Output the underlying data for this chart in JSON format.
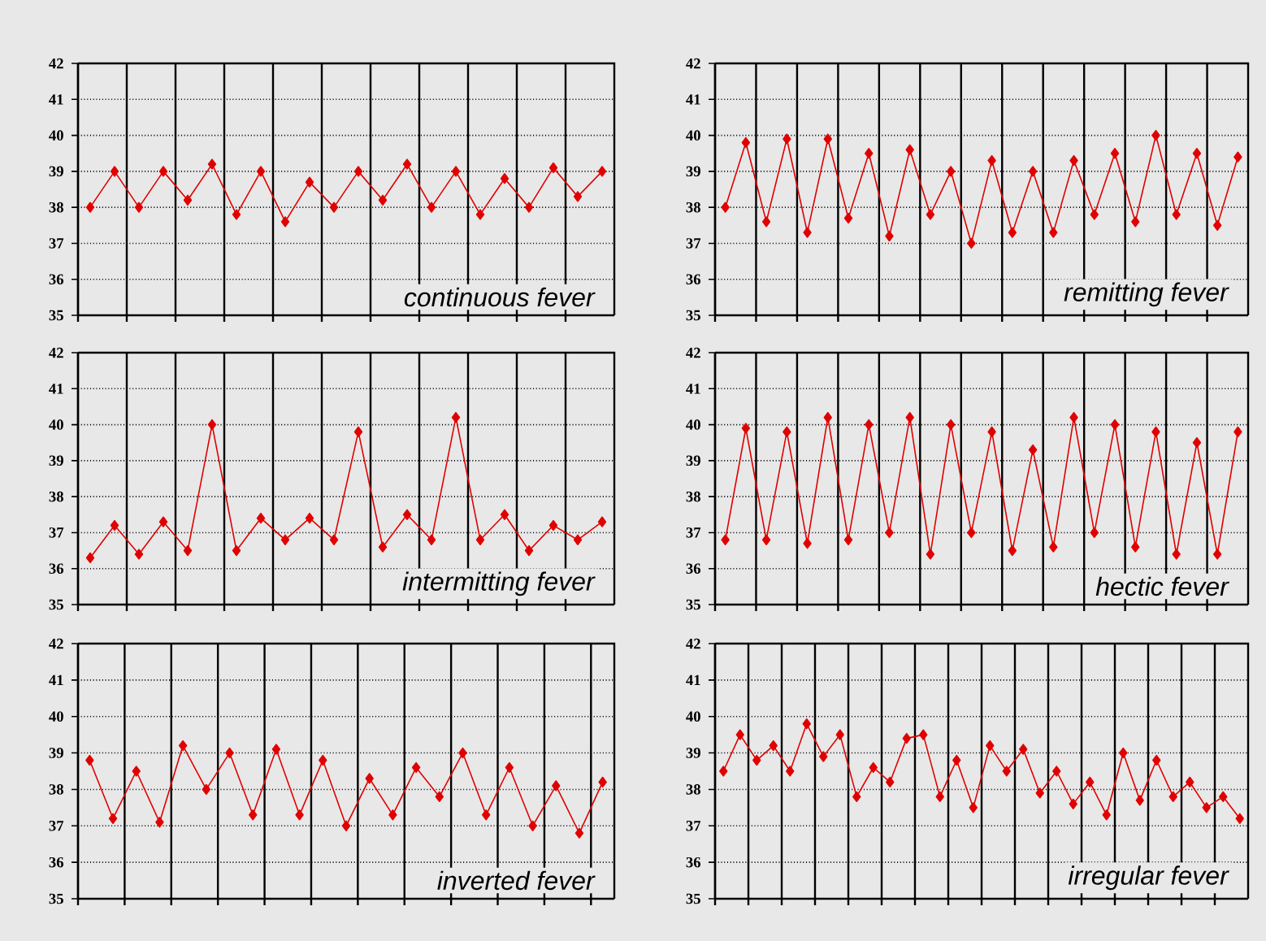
{
  "chart_data": [
    {
      "type": "line",
      "categories": [
        null,
        null,
        null,
        null,
        null,
        null,
        null,
        null,
        null,
        null,
        null,
        null,
        null,
        null,
        null,
        null,
        null,
        null,
        null,
        null,
        null,
        null
      ],
      "values": [
        38,
        39,
        38,
        39,
        38.2,
        39.2,
        37.8,
        39,
        37.6,
        38.7,
        38,
        39,
        38.2,
        39.2,
        38,
        39,
        37.8,
        38.8,
        38,
        39.1,
        38.3,
        39
      ],
      "color": "#e00000",
      "marker": "diamond",
      "ylim": [
        35,
        42
      ],
      "yticks": [
        35,
        36,
        37,
        38,
        39,
        40,
        41,
        42
      ],
      "grid": true,
      "tick_labels": "y",
      "annotations": [
        "continuous fever"
      ]
    },
    {
      "type": "line",
      "categories": [
        null,
        null,
        null,
        null,
        null,
        null,
        null,
        null,
        null,
        null,
        null,
        null,
        null,
        null,
        null,
        null,
        null,
        null,
        null,
        null,
        null,
        null,
        null,
        null,
        null,
        null
      ],
      "values": [
        38,
        39.8,
        37.6,
        39.9,
        37.3,
        39.9,
        37.7,
        39.5,
        37.2,
        39.6,
        37.8,
        39,
        37,
        39.3,
        37.3,
        39,
        37.3,
        39.3,
        37.8,
        39.5,
        37.6,
        40,
        37.8,
        39.5,
        37.5,
        39.4
      ],
      "color": "#e00000",
      "marker": "diamond",
      "ylim": [
        35,
        42
      ],
      "yticks": [
        35,
        36,
        37,
        38,
        39,
        40,
        41,
        42
      ],
      "grid": true,
      "tick_labels": "y",
      "annotations": [
        "remitting fever"
      ]
    },
    {
      "type": "line",
      "categories": [
        null,
        null,
        null,
        null,
        null,
        null,
        null,
        null,
        null,
        null,
        null,
        null,
        null,
        null,
        null,
        null,
        null,
        null,
        null,
        null,
        null,
        null
      ],
      "values": [
        36.3,
        37.2,
        36.4,
        37.3,
        36.5,
        40,
        36.5,
        37.4,
        36.8,
        37.4,
        36.8,
        39.8,
        36.6,
        37.5,
        36.8,
        40.2,
        36.8,
        37.5,
        36.5,
        37.2,
        36.8,
        37.3
      ],
      "color": "#e00000",
      "marker": "diamond",
      "ylim": [
        35,
        42
      ],
      "yticks": [
        35,
        36,
        37,
        38,
        39,
        40,
        41,
        42
      ],
      "grid": true,
      "tick_labels": "y",
      "annotations": [
        "intermitting fever"
      ]
    },
    {
      "type": "line",
      "categories": [
        null,
        null,
        null,
        null,
        null,
        null,
        null,
        null,
        null,
        null,
        null,
        null,
        null,
        null,
        null,
        null,
        null,
        null,
        null,
        null,
        null,
        null,
        null,
        null,
        null,
        null
      ],
      "values": [
        36.8,
        39.9,
        36.8,
        39.8,
        36.7,
        40.2,
        36.8,
        40,
        37,
        40.2,
        36.4,
        40,
        37,
        39.8,
        36.5,
        39.3,
        36.6,
        40.2,
        37,
        40,
        36.6,
        39.8,
        36.4,
        39.5,
        36.4,
        39.8
      ],
      "color": "#e00000",
      "marker": "diamond",
      "ylim": [
        35,
        42
      ],
      "yticks": [
        35,
        36,
        37,
        38,
        39,
        40,
        41,
        42
      ],
      "grid": true,
      "tick_labels": "y",
      "annotations": [
        "hectic fever"
      ]
    },
    {
      "type": "line",
      "categories": [
        null,
        null,
        null,
        null,
        null,
        null,
        null,
        null,
        null,
        null,
        null,
        null,
        null,
        null,
        null,
        null,
        null,
        null,
        null,
        null,
        null,
        null,
        null
      ],
      "values": [
        38.8,
        37.2,
        38.5,
        37.1,
        39.2,
        38,
        39,
        37.3,
        39.1,
        37.3,
        38.8,
        37,
        38.3,
        37.3,
        38.6,
        37.8,
        39,
        37.3,
        38.6,
        37,
        38.1,
        36.8,
        38.2
      ],
      "color": "#e00000",
      "marker": "diamond",
      "ylim": [
        35,
        42
      ],
      "yticks": [
        35,
        36,
        37,
        38,
        39,
        40,
        41,
        42
      ],
      "grid": true,
      "tick_labels": "y",
      "annotations": [
        "inverted fever"
      ]
    },
    {
      "type": "line",
      "categories": [
        null,
        null,
        null,
        null,
        null,
        null,
        null,
        null,
        null,
        null,
        null,
        null,
        null,
        null,
        null,
        null,
        null,
        null,
        null,
        null,
        null,
        null,
        null,
        null,
        null,
        null,
        null,
        null,
        null,
        null,
        null,
        null
      ],
      "values": [
        38.5,
        39.5,
        38.8,
        39.2,
        38.5,
        39.8,
        38.9,
        39.5,
        37.8,
        38.6,
        38.2,
        39.4,
        39.5,
        37.8,
        38.8,
        37.5,
        39.2,
        38.5,
        39.1,
        37.9,
        38.5,
        37.6,
        38.2,
        37.3,
        39,
        37.7,
        38.8,
        37.8,
        38.2,
        37.5,
        37.8,
        37.2
      ],
      "color": "#e00000",
      "marker": "diamond",
      "ylim": [
        35,
        42
      ],
      "yticks": [
        35,
        36,
        37,
        38,
        39,
        40,
        41,
        42
      ],
      "grid": true,
      "tick_labels": "y",
      "annotations": [
        "irregular fever"
      ]
    }
  ]
}
